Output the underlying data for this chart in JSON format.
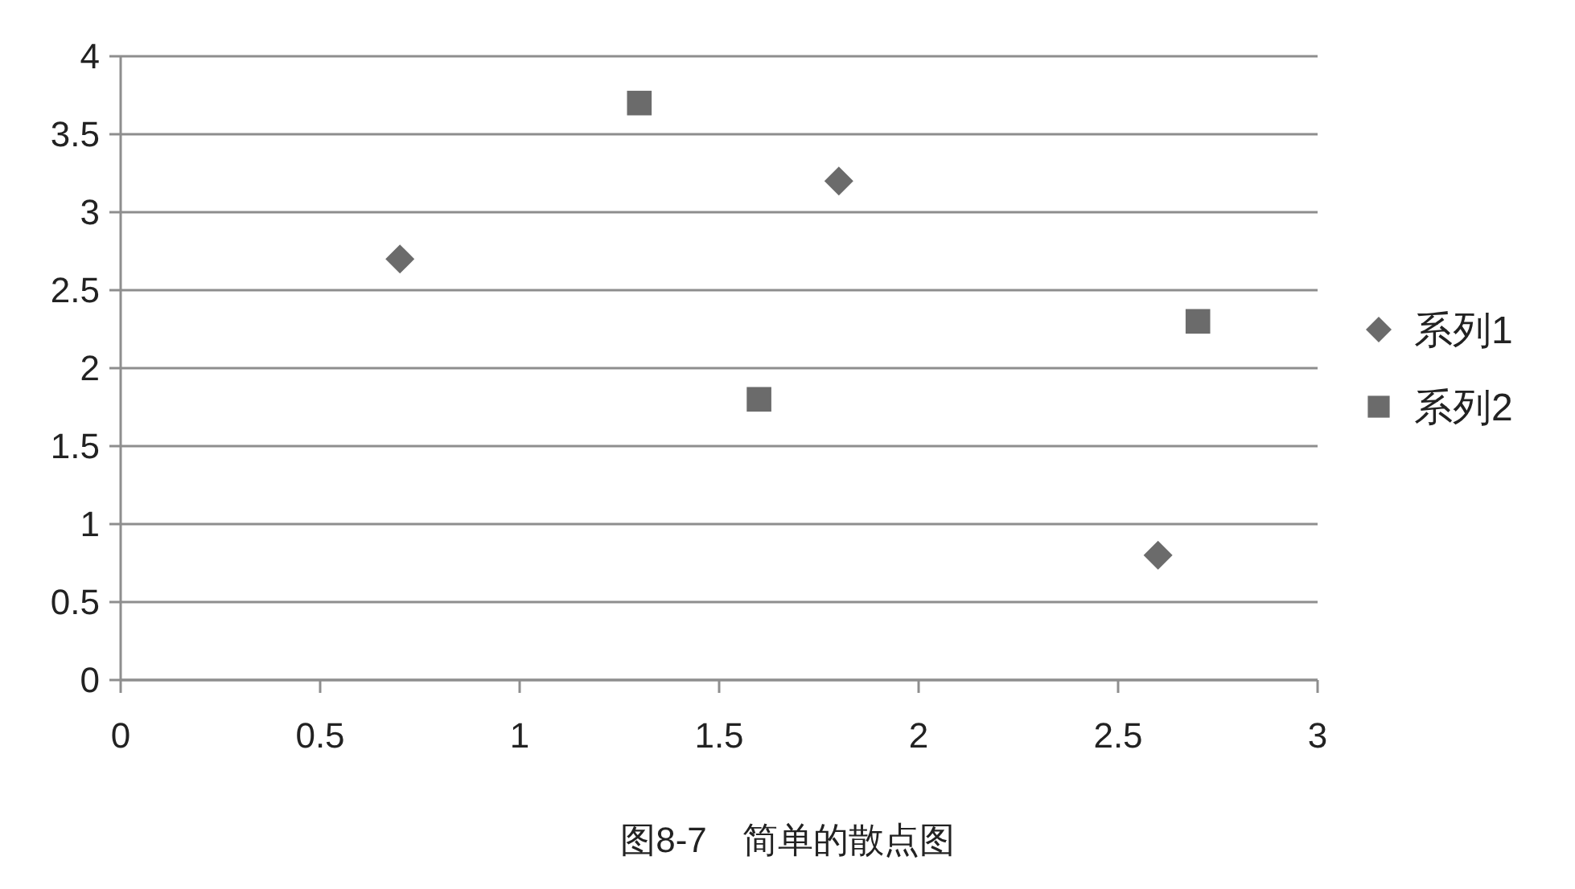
{
  "chart_data": {
    "type": "scatter",
    "series": [
      {
        "name": "系列1",
        "color": "#6b6b6b",
        "marker": "diamond",
        "x": [
          0.7,
          1.8,
          2.6
        ],
        "values": [
          2.7,
          3.2,
          0.8
        ]
      },
      {
        "name": "系列2",
        "color": "#6b6b6b",
        "marker": "square",
        "x": [
          1.3,
          1.6,
          2.7
        ],
        "values": [
          3.7,
          1.8,
          2.3
        ]
      }
    ],
    "xlim": [
      0,
      3
    ],
    "xticks": [
      0,
      0.5,
      1,
      1.5,
      2,
      2.5,
      3
    ],
    "ylim": [
      0,
      4
    ],
    "yticks": [
      0,
      0.5,
      1,
      1.5,
      2,
      2.5,
      3,
      3.5,
      4
    ],
    "grid": "y",
    "legend": "right",
    "annotations": [
      "图8-7　简单的散点图"
    ]
  }
}
